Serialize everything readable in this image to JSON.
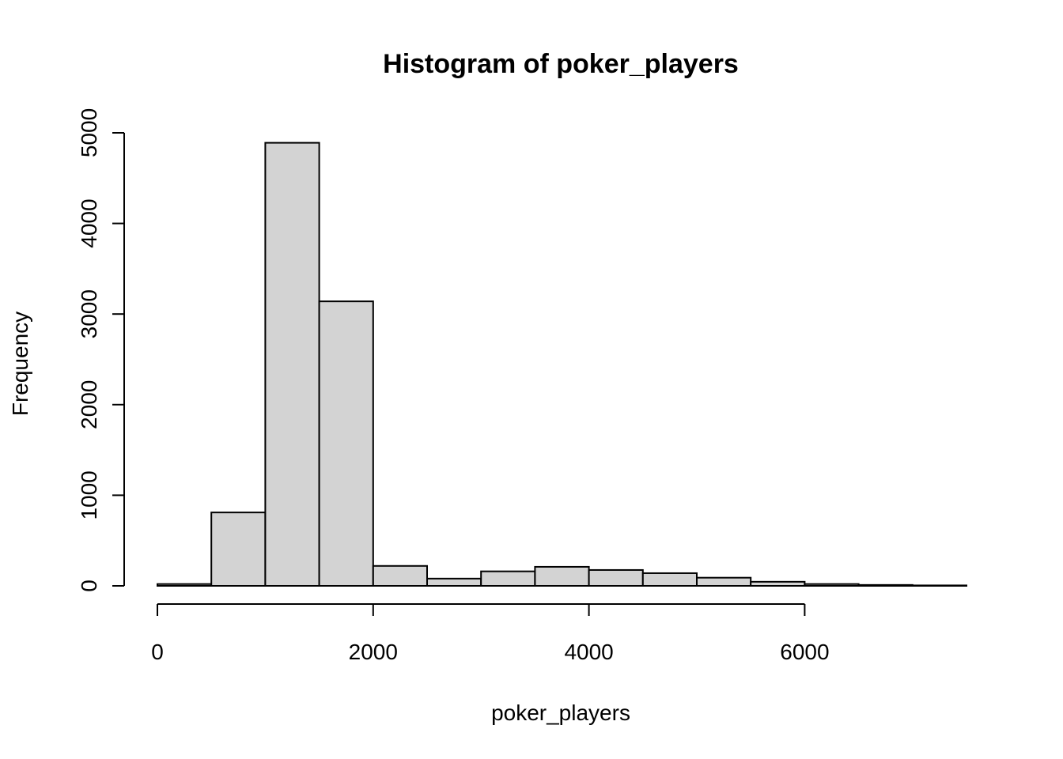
{
  "chart_data": {
    "type": "bar",
    "title": "Histogram of poker_players",
    "xlabel": "poker_players",
    "ylabel": "Frequency",
    "bin_edges": [
      0,
      500,
      1000,
      1500,
      2000,
      2500,
      3000,
      3500,
      4000,
      4500,
      5000,
      5500,
      6000,
      6500,
      7000,
      7500
    ],
    "values": [
      20,
      810,
      4890,
      3140,
      220,
      80,
      160,
      210,
      175,
      140,
      90,
      45,
      20,
      10,
      5
    ],
    "xlim": [
      0,
      7500
    ],
    "ylim": [
      0,
      5000
    ],
    "x_ticks": [
      0,
      2000,
      4000,
      6000
    ],
    "x_tick_labels": [
      "0",
      "2000",
      "4000",
      "6000"
    ],
    "y_ticks": [
      0,
      1000,
      2000,
      3000,
      4000,
      5000
    ],
    "y_tick_labels": [
      "0",
      "1000",
      "2000",
      "3000",
      "4000",
      "5000"
    ],
    "grid": false,
    "legend": "none",
    "colors": {
      "bar_fill": "#d3d3d3",
      "bar_stroke": "#000000"
    }
  }
}
